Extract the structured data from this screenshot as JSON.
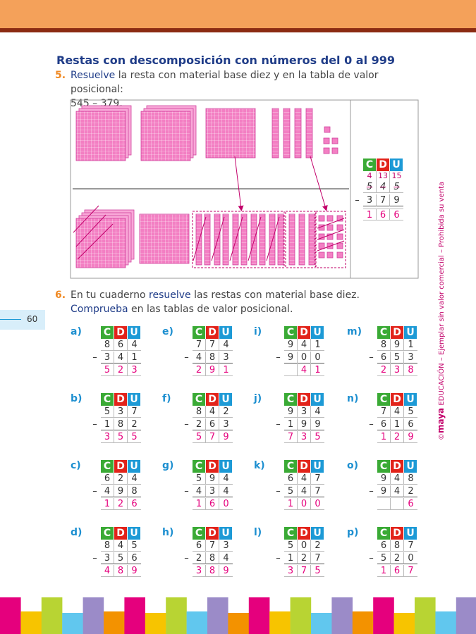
{
  "header": {
    "title": "Restas con descomposición con números del 0 al 999"
  },
  "exercise5": {
    "number": "5.",
    "verb": "Resuelve",
    "text": " la resta con material base diez y en la tabla de valor posicional:",
    "operation": "545 – 379.",
    "table": {
      "headers": [
        "C",
        "D",
        "U"
      ],
      "regrouped": [
        4,
        13,
        15
      ],
      "original": [
        5,
        4,
        5
      ],
      "minus": "–",
      "subtrahend": [
        3,
        7,
        9
      ],
      "result": [
        1,
        6,
        6
      ]
    }
  },
  "page_number": 60,
  "exercise6": {
    "number": "6.",
    "parts": [
      "En tu cuaderno ",
      "resuelve",
      " las restas con material base diez. ",
      "Comprueba",
      " en las tablas de valor posicional."
    ],
    "headers": [
      "C",
      "D",
      "U"
    ],
    "minus": "–",
    "items": [
      {
        "label": "a)",
        "top": [
          8,
          6,
          4
        ],
        "bottom": [
          3,
          4,
          1
        ],
        "result": [
          5,
          2,
          3
        ]
      },
      {
        "label": "b)",
        "top": [
          5,
          3,
          7
        ],
        "bottom": [
          1,
          8,
          2
        ],
        "result": [
          3,
          5,
          5
        ]
      },
      {
        "label": "c)",
        "top": [
          6,
          2,
          4
        ],
        "bottom": [
          4,
          9,
          8
        ],
        "result": [
          1,
          2,
          6
        ]
      },
      {
        "label": "d)",
        "top": [
          8,
          4,
          5
        ],
        "bottom": [
          3,
          5,
          6
        ],
        "result": [
          4,
          8,
          9
        ]
      },
      {
        "label": "e)",
        "top": [
          7,
          7,
          4
        ],
        "bottom": [
          4,
          8,
          3
        ],
        "result": [
          2,
          9,
          1
        ]
      },
      {
        "label": "f)",
        "top": [
          8,
          4,
          2
        ],
        "bottom": [
          2,
          6,
          3
        ],
        "result": [
          5,
          7,
          9
        ]
      },
      {
        "label": "g)",
        "top": [
          5,
          9,
          4
        ],
        "bottom": [
          4,
          3,
          4
        ],
        "result": [
          1,
          6,
          0
        ]
      },
      {
        "label": "h)",
        "top": [
          6,
          7,
          3
        ],
        "bottom": [
          2,
          8,
          4
        ],
        "result": [
          3,
          8,
          9
        ]
      },
      {
        "label": "i)",
        "top": [
          9,
          4,
          1
        ],
        "bottom": [
          9,
          0,
          0
        ],
        "result": [
          null,
          4,
          1
        ]
      },
      {
        "label": "j)",
        "top": [
          9,
          3,
          4
        ],
        "bottom": [
          1,
          9,
          9
        ],
        "result": [
          7,
          3,
          5
        ]
      },
      {
        "label": "k)",
        "top": [
          6,
          4,
          7
        ],
        "bottom": [
          5,
          4,
          7
        ],
        "result": [
          1,
          0,
          0
        ]
      },
      {
        "label": "l)",
        "top": [
          5,
          0,
          2
        ],
        "bottom": [
          1,
          2,
          7
        ],
        "result": [
          3,
          7,
          5
        ]
      },
      {
        "label": "m)",
        "top": [
          8,
          9,
          1
        ],
        "bottom": [
          6,
          5,
          3
        ],
        "result": [
          2,
          3,
          8
        ]
      },
      {
        "label": "n)",
        "top": [
          7,
          4,
          5
        ],
        "bottom": [
          6,
          1,
          6
        ],
        "result": [
          1,
          2,
          9
        ]
      },
      {
        "label": "o)",
        "top": [
          9,
          4,
          8
        ],
        "bottom": [
          9,
          4,
          2
        ],
        "result": [
          null,
          null,
          6
        ]
      },
      {
        "label": "p)",
        "top": [
          6,
          8,
          7
        ],
        "bottom": [
          5,
          2,
          0
        ],
        "result": [
          1,
          6,
          7
        ]
      }
    ]
  },
  "side_note": {
    "copyright": "©",
    "brand": "maya",
    "text": "EDUCACIÓN – Ejemplar sin valor comercial – Prohibida su venta"
  }
}
